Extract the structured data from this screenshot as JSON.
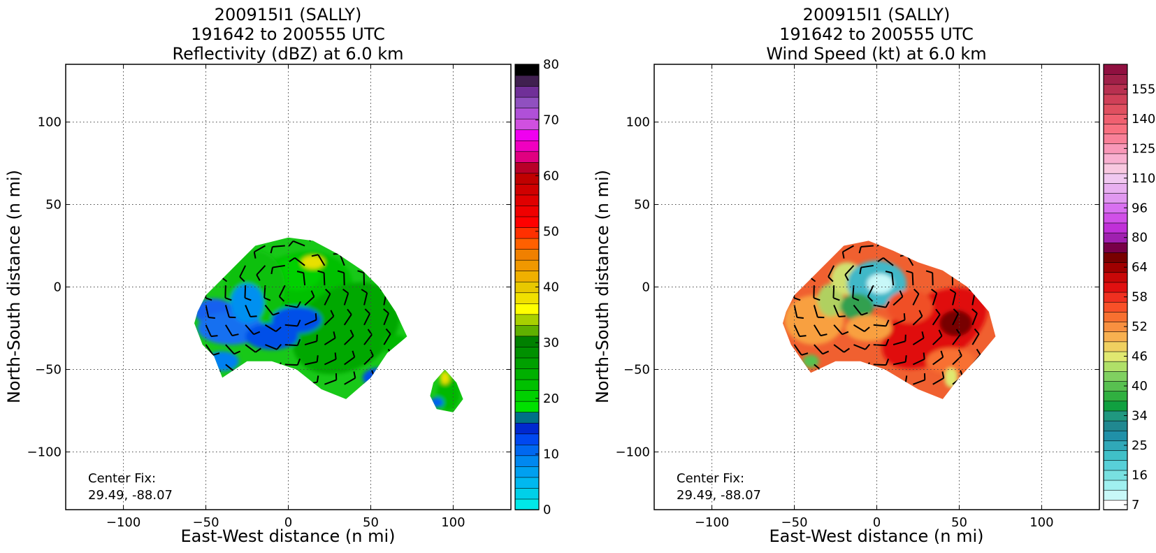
{
  "chart_data": [
    {
      "type": "heatmap",
      "title_lines": [
        "200915I1 (SALLY)",
        "191642 to 200555 UTC",
        "Reflectivity (dBZ) at 6.0 km"
      ],
      "xlabel": "East-West distance (n mi)",
      "ylabel": "North-South distance (n mi)",
      "xlim": [
        -135,
        135
      ],
      "ylim": [
        -135,
        135
      ],
      "xticks": [
        -100,
        -50,
        0,
        50,
        100
      ],
      "yticks": [
        -100,
        -50,
        0,
        50,
        100
      ],
      "xtick_labels": [
        "−100",
        "−50",
        "0",
        "50",
        "100"
      ],
      "ytick_labels": [
        "−100",
        "−50",
        "0",
        "50",
        "100"
      ],
      "grid": true,
      "annotation": [
        "Center Fix:",
        "29.49, -88.07"
      ],
      "colorbar": {
        "range": [
          0,
          80
        ],
        "tick_values": [
          0,
          10,
          20,
          30,
          40,
          50,
          60,
          70,
          80
        ],
        "tick_labels": [
          "0",
          "10",
          "20",
          "30",
          "40",
          "50",
          "60",
          "70",
          "80"
        ],
        "colors": [
          "#00e8e8",
          "#00d0e8",
          "#00b8f0",
          "#00a0f0",
          "#0088f0",
          "#0068f0",
          "#0048f0",
          "#0028d0",
          "#007088",
          "#00e000",
          "#00d000",
          "#00c000",
          "#00b000",
          "#00a000",
          "#009000",
          "#008000",
          "#60b000",
          "#a8d000",
          "#ffff00",
          "#f0e000",
          "#e8c800",
          "#f0b000",
          "#f09800",
          "#f08000",
          "#ff6000",
          "#ff3000",
          "#ff0000",
          "#f00000",
          "#e00000",
          "#d00000",
          "#c00000",
          "#b80028",
          "#e00080",
          "#f000c0",
          "#f000f0",
          "#d050e0",
          "#b050d8",
          "#9050c0",
          "#703098",
          "#402050",
          "#000000"
        ]
      },
      "field": {
        "blobs": [
          {
            "x": 5,
            "y": -5,
            "rx": 35,
            "ry": 25,
            "rot": -20,
            "color": "#00c000"
          },
          {
            "x": 35,
            "y": -25,
            "rx": 35,
            "ry": 25,
            "rot": -30,
            "color": "#00a800"
          },
          {
            "x": 5,
            "y": 8,
            "rx": 15,
            "ry": 10,
            "rot": 0,
            "color": "#00d000"
          },
          {
            "x": -20,
            "y": 0,
            "rx": 18,
            "ry": 22,
            "rot": 0,
            "color": "#10c010"
          },
          {
            "x": -45,
            "y": -15,
            "rx": 12,
            "ry": 8,
            "rot": 0,
            "color": "#1860f0"
          },
          {
            "x": -35,
            "y": -25,
            "rx": 20,
            "ry": 10,
            "rot": 0,
            "color": "#1870f0"
          },
          {
            "x": -25,
            "y": -10,
            "rx": 10,
            "ry": 12,
            "rot": 0,
            "color": "#0090f0"
          },
          {
            "x": -10,
            "y": -30,
            "rx": 16,
            "ry": 8,
            "rot": 0,
            "color": "#0050e8"
          },
          {
            "x": 5,
            "y": -20,
            "rx": 15,
            "ry": 8,
            "rot": 0,
            "color": "#0050e8"
          },
          {
            "x": -40,
            "y": -45,
            "rx": 10,
            "ry": 6,
            "rot": 0,
            "color": "#0080f0"
          },
          {
            "x": 55,
            "y": -55,
            "rx": 10,
            "ry": 6,
            "rot": 0,
            "color": "#0050e8"
          },
          {
            "x": 65,
            "y": -35,
            "rx": 8,
            "ry": 6,
            "rot": 0,
            "color": "#00b800"
          },
          {
            "x": 15,
            "y": 15,
            "rx": 7,
            "ry": 4,
            "rot": 0,
            "color": "#e8e000"
          },
          {
            "x": 97,
            "y": -65,
            "rx": 7,
            "ry": 10,
            "rot": 0,
            "color": "#00b800"
          },
          {
            "x": 95,
            "y": -55,
            "rx": 3,
            "ry": 4,
            "rot": 0,
            "color": "#e8e000"
          },
          {
            "x": 90,
            "y": -70,
            "rx": 4,
            "ry": 3,
            "rot": 0,
            "color": "#0060f0"
          }
        ]
      }
    },
    {
      "type": "heatmap",
      "title_lines": [
        "200915I1 (SALLY)",
        "191642 to 200555 UTC",
        "Wind Speed (kt) at 6.0 km"
      ],
      "xlabel": "East-West distance (n mi)",
      "ylabel": "North-South distance (n mi)",
      "xlim": [
        -135,
        135
      ],
      "ylim": [
        -135,
        135
      ],
      "xticks": [
        -100,
        -50,
        0,
        50,
        100
      ],
      "yticks": [
        -100,
        -50,
        0,
        50,
        100
      ],
      "xtick_labels": [
        "−100",
        "−50",
        "0",
        "50",
        "100"
      ],
      "ytick_labels": [
        "−100",
        "−50",
        "0",
        "50",
        "100"
      ],
      "grid": true,
      "annotation": [
        "Center Fix:",
        "29.49, -88.07"
      ],
      "colorbar": {
        "tick_labels": [
          "7",
          "16",
          "25",
          "34",
          "40",
          "46",
          "52",
          "58",
          "64",
          "80",
          "96",
          "110",
          "125",
          "140",
          "155"
        ],
        "colors": [
          "#ffffff",
          "#c8f8f8",
          "#a0f0f0",
          "#78e0e0",
          "#58d0d8",
          "#40c0c8",
          "#30a8b8",
          "#2090a8",
          "#208890",
          "#209880",
          "#10a040",
          "#30b040",
          "#58c050",
          "#80d060",
          "#b0e068",
          "#e0e870",
          "#f0d060",
          "#f8b050",
          "#f89040",
          "#f87030",
          "#f85028",
          "#f03020",
          "#e01010",
          "#c80808",
          "#a00000",
          "#780000",
          "#780048",
          "#a020b0",
          "#c030d8",
          "#d050e8",
          "#d870f0",
          "#e098f0",
          "#e8b0f0",
          "#f0c8f0",
          "#f8c8e0",
          "#f8b0d0",
          "#f898b8",
          "#f88098",
          "#f87080",
          "#f06070",
          "#e05060",
          "#d04058",
          "#b83050",
          "#a02048",
          "#901040"
        ]
      },
      "field": {
        "blobs": [
          {
            "x": -38,
            "y": -20,
            "rx": 18,
            "ry": 15,
            "rot": 0,
            "color": "#f8a040"
          },
          {
            "x": -28,
            "y": -8,
            "rx": 8,
            "ry": 10,
            "rot": 0,
            "color": "#b0d060"
          },
          {
            "x": -18,
            "y": 5,
            "rx": 10,
            "ry": 10,
            "rot": 0,
            "color": "#d0e070"
          },
          {
            "x": 0,
            "y": 2,
            "rx": 18,
            "ry": 14,
            "rot": 0,
            "color": "#40b8c8"
          },
          {
            "x": 2,
            "y": 2,
            "rx": 8,
            "ry": 6,
            "rot": 0,
            "color": "#c8f8f8"
          },
          {
            "x": -12,
            "y": -12,
            "rx": 10,
            "ry": 8,
            "rot": 0,
            "color": "#30a050"
          },
          {
            "x": 35,
            "y": -25,
            "rx": 35,
            "ry": 20,
            "rot": -30,
            "color": "#e01010"
          },
          {
            "x": 48,
            "y": -22,
            "rx": 10,
            "ry": 8,
            "rot": 0,
            "color": "#780000"
          },
          {
            "x": 20,
            "y": -12,
            "rx": 14,
            "ry": 10,
            "rot": 0,
            "color": "#f05028"
          },
          {
            "x": 45,
            "y": -45,
            "rx": 15,
            "ry": 8,
            "rot": 0,
            "color": "#f87030"
          },
          {
            "x": -5,
            "y": -25,
            "rx": 14,
            "ry": 8,
            "rot": 0,
            "color": "#f8a040"
          },
          {
            "x": -40,
            "y": -45,
            "rx": 5,
            "ry": 4,
            "rot": 0,
            "color": "#58c050"
          },
          {
            "x": 45,
            "y": -55,
            "rx": 4,
            "ry": 6,
            "rot": 0,
            "color": "#e0e870"
          }
        ]
      }
    }
  ]
}
